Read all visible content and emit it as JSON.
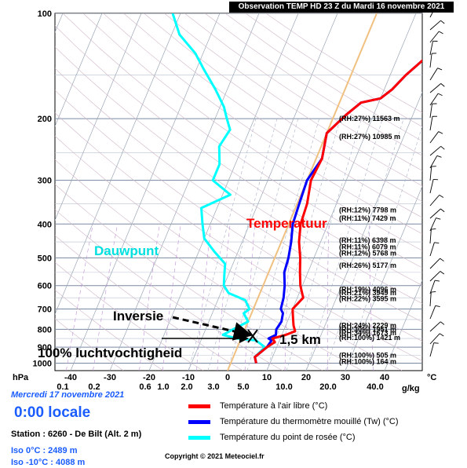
{
  "title": "Observation TEMP HD 23 Z du Mardi 16 novembre 2021",
  "date_label": "Mercredi 17 novembre 2021",
  "local_time": "0:00 locale",
  "station": "Station : 6260 - De Bilt (Alt. 2 m)",
  "iso0": "Iso 0°C : 2489 m",
  "iso10": "Iso -10°C : 4088 m",
  "copyright": "Copyright © 2021 Meteociel.fr",
  "legend": [
    {
      "label": "Température à l'air libre (°C)",
      "color": "#ff0000"
    },
    {
      "label": "Température du thermomètre mouillé (Tw) (°C)",
      "color": "#0000ff"
    },
    {
      "label": "Température du point de rosée (°C)",
      "color": "#00ffff"
    }
  ],
  "chart_data": {
    "type": "line",
    "x_unit": "°C",
    "y_unit": "hPa",
    "x_axis_label_left": "hPa",
    "x_axis_unit_label": "°C",
    "mixing_unit_label": "g/kg",
    "pressure_ticks": [
      100,
      200,
      300,
      400,
      500,
      600,
      700,
      800,
      900,
      1000
    ],
    "temp_ticks": [
      -40,
      -30,
      -20,
      -10,
      0,
      10,
      20,
      30,
      40
    ],
    "mixing_ticks": [
      "0.1",
      "0.2",
      "0.6",
      "1.0",
      "2.0",
      "3.0",
      "5.0",
      "10.0",
      "20.0",
      "40.0"
    ],
    "series": [
      {
        "key": "temperature",
        "color": "#ff0000",
        "points": [
          [
            6.5,
            1000
          ],
          [
            5.5,
            960
          ],
          [
            7.5,
            900
          ],
          [
            9,
            870
          ],
          [
            8,
            850
          ],
          [
            11,
            830
          ],
          [
            13,
            810
          ],
          [
            12,
            780
          ],
          [
            11,
            740
          ],
          [
            10,
            700
          ],
          [
            11.5,
            650
          ],
          [
            9.5,
            600
          ],
          [
            8,
            550
          ],
          [
            6.5,
            500
          ],
          [
            4.5,
            450
          ],
          [
            3,
            400
          ],
          [
            2.5,
            350
          ],
          [
            1,
            300
          ],
          [
            1.5,
            260
          ],
          [
            0,
            220
          ],
          [
            3,
            195
          ],
          [
            5.5,
            180
          ],
          [
            10,
            175
          ],
          [
            12,
            165
          ],
          [
            14,
            150
          ],
          [
            18,
            130
          ],
          [
            22,
            115
          ],
          [
            27,
            105
          ],
          [
            29,
            100
          ]
        ]
      },
      {
        "key": "wetbulb",
        "color": "#0000ff",
        "points": [
          [
            6.5,
            1000
          ],
          [
            5.5,
            960
          ],
          [
            7.5,
            900
          ],
          [
            8,
            860
          ],
          [
            7,
            850
          ],
          [
            8.5,
            830
          ],
          [
            8,
            800
          ],
          [
            8.5,
            760
          ],
          [
            8,
            720
          ],
          [
            7,
            700
          ],
          [
            6.5,
            650
          ],
          [
            5.5,
            600
          ],
          [
            4,
            550
          ],
          [
            3.5,
            500
          ],
          [
            2.5,
            450
          ],
          [
            1,
            400
          ],
          [
            0.5,
            350
          ],
          [
            0,
            300
          ],
          [
            1.5,
            260
          ],
          [
            0,
            220
          ],
          [
            3,
            195
          ],
          [
            5.5,
            180
          ],
          [
            10,
            175
          ],
          [
            12,
            165
          ],
          [
            14,
            150
          ],
          [
            18,
            130
          ],
          [
            22,
            115
          ],
          [
            27,
            105
          ],
          [
            29,
            100
          ]
        ]
      },
      {
        "key": "dewpoint",
        "color": "#00ffff",
        "points": [
          [
            6.5,
            1000
          ],
          [
            5.5,
            960
          ],
          [
            7,
            900
          ],
          [
            4,
            860
          ],
          [
            -1,
            850
          ],
          [
            -5,
            830
          ],
          [
            -3,
            800
          ],
          [
            0,
            760
          ],
          [
            -2,
            720
          ],
          [
            -1,
            700
          ],
          [
            -3,
            660
          ],
          [
            -8,
            630
          ],
          [
            -10,
            600
          ],
          [
            -11,
            560
          ],
          [
            -12,
            520
          ],
          [
            -16,
            480
          ],
          [
            -20,
            440
          ],
          [
            -22,
            400
          ],
          [
            -24,
            360
          ],
          [
            -18,
            330
          ],
          [
            -24,
            300
          ],
          [
            -24,
            270
          ],
          [
            -26,
            240
          ],
          [
            -25,
            215
          ],
          [
            -27,
            200
          ],
          [
            -29,
            185
          ],
          [
            -33,
            165
          ],
          [
            -38,
            145
          ],
          [
            -42,
            130
          ],
          [
            -48,
            115
          ],
          [
            -52,
            100
          ]
        ]
      }
    ],
    "levels": [
      {
        "label": "(RH:27%) 11563 m",
        "p": 200
      },
      {
        "label": "(RH:27%) 10985 m",
        "p": 225
      },
      {
        "label": "(RH:12%) 7798 m",
        "p": 365
      },
      {
        "label": "(RH:11%) 7429 m",
        "p": 385
      },
      {
        "label": "(RH:11%) 6398 m",
        "p": 445
      },
      {
        "label": "(RH:11%) 6079 m",
        "p": 465
      },
      {
        "label": "(RH:12%) 5768 m",
        "p": 485
      },
      {
        "label": "(RH:26%) 5177 m",
        "p": 525
      },
      {
        "label": "(RH:19%) 4096 m",
        "p": 615
      },
      {
        "label": "(RH:21%) 3949 m",
        "p": 630
      },
      {
        "label": "(RH:22%) 3595 m",
        "p": 655
      },
      {
        "label": "(RH:24%) 2229 m",
        "p": 780
      },
      {
        "label": "(RH:30%) 1951 m",
        "p": 800
      },
      {
        "label": "(RH:34%) 1673 m",
        "p": 820
      },
      {
        "label": "(RH:100%) 1421 m",
        "p": 845
      },
      {
        "label": "(RH:100%) 505 m",
        "p": 950
      },
      {
        "label": "(RH:100%) 164 m",
        "p": 990
      }
    ],
    "annotations": [
      {
        "text": "Temperatuur",
        "color": "#ff0000"
      },
      {
        "text": "Dauwpunt",
        "color": "#00e0e0"
      },
      {
        "text": "Inversie",
        "color": "#000000"
      },
      {
        "text": "1,5 km",
        "color": "#000000"
      },
      {
        "text": "100% luchtvochtigheid",
        "color": "#000000"
      }
    ],
    "wind_barbs": {
      "count": 28,
      "color": "#000000"
    },
    "grid": true
  }
}
